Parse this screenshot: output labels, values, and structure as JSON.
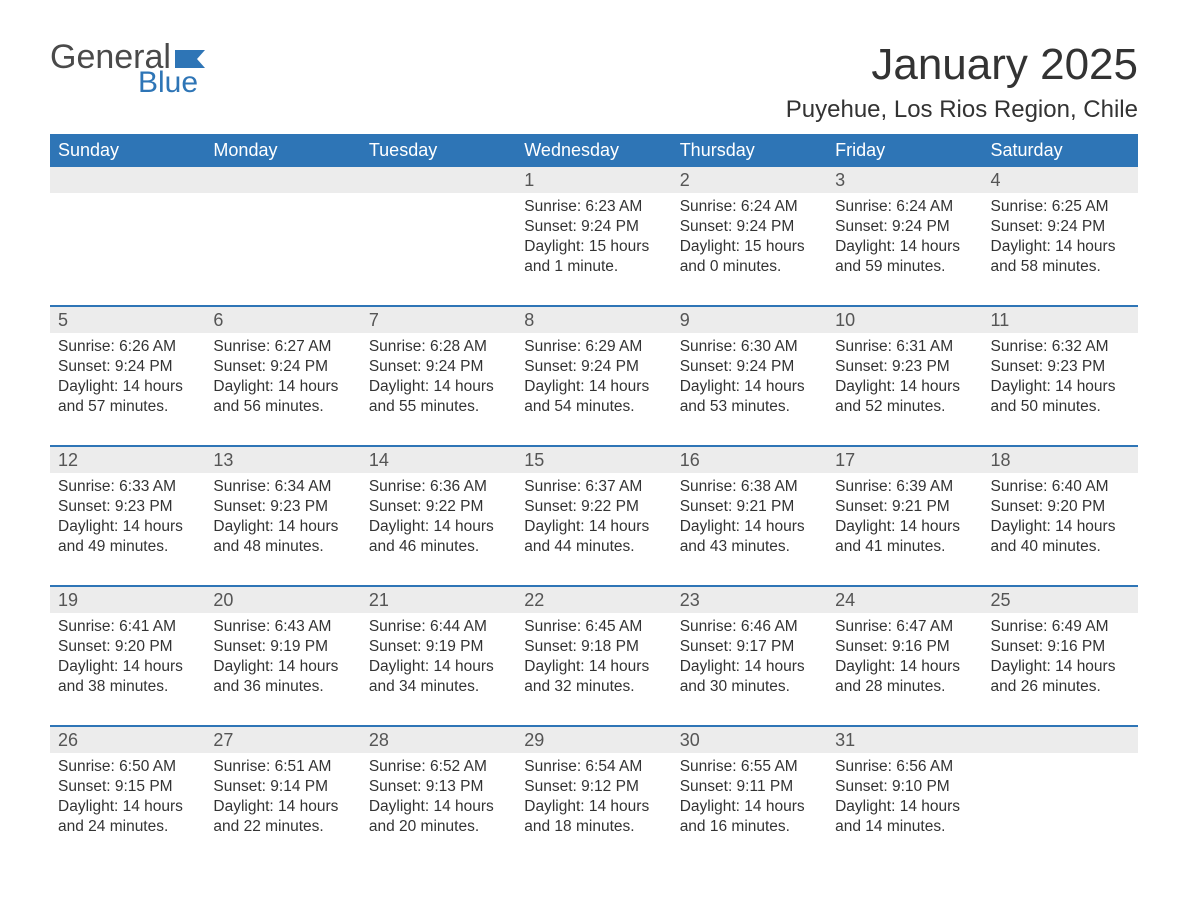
{
  "logo": {
    "general": "General",
    "blue": "Blue"
  },
  "title": "January 2025",
  "location": "Puyehue, Los Rios Region, Chile",
  "colors": {
    "header_bg": "#2e75b6",
    "header_text": "#ffffff",
    "daynum_bg": "#ececec",
    "body_text": "#333333"
  },
  "day_headers": [
    "Sunday",
    "Monday",
    "Tuesday",
    "Wednesday",
    "Thursday",
    "Friday",
    "Saturday"
  ],
  "weeks": [
    [
      null,
      null,
      null,
      {
        "n": "1",
        "sunrise": "Sunrise: 6:23 AM",
        "sunset": "Sunset: 9:24 PM",
        "day1": "Daylight: 15 hours",
        "day2": "and 1 minute."
      },
      {
        "n": "2",
        "sunrise": "Sunrise: 6:24 AM",
        "sunset": "Sunset: 9:24 PM",
        "day1": "Daylight: 15 hours",
        "day2": "and 0 minutes."
      },
      {
        "n": "3",
        "sunrise": "Sunrise: 6:24 AM",
        "sunset": "Sunset: 9:24 PM",
        "day1": "Daylight: 14 hours",
        "day2": "and 59 minutes."
      },
      {
        "n": "4",
        "sunrise": "Sunrise: 6:25 AM",
        "sunset": "Sunset: 9:24 PM",
        "day1": "Daylight: 14 hours",
        "day2": "and 58 minutes."
      }
    ],
    [
      {
        "n": "5",
        "sunrise": "Sunrise: 6:26 AM",
        "sunset": "Sunset: 9:24 PM",
        "day1": "Daylight: 14 hours",
        "day2": "and 57 minutes."
      },
      {
        "n": "6",
        "sunrise": "Sunrise: 6:27 AM",
        "sunset": "Sunset: 9:24 PM",
        "day1": "Daylight: 14 hours",
        "day2": "and 56 minutes."
      },
      {
        "n": "7",
        "sunrise": "Sunrise: 6:28 AM",
        "sunset": "Sunset: 9:24 PM",
        "day1": "Daylight: 14 hours",
        "day2": "and 55 minutes."
      },
      {
        "n": "8",
        "sunrise": "Sunrise: 6:29 AM",
        "sunset": "Sunset: 9:24 PM",
        "day1": "Daylight: 14 hours",
        "day2": "and 54 minutes."
      },
      {
        "n": "9",
        "sunrise": "Sunrise: 6:30 AM",
        "sunset": "Sunset: 9:24 PM",
        "day1": "Daylight: 14 hours",
        "day2": "and 53 minutes."
      },
      {
        "n": "10",
        "sunrise": "Sunrise: 6:31 AM",
        "sunset": "Sunset: 9:23 PM",
        "day1": "Daylight: 14 hours",
        "day2": "and 52 minutes."
      },
      {
        "n": "11",
        "sunrise": "Sunrise: 6:32 AM",
        "sunset": "Sunset: 9:23 PM",
        "day1": "Daylight: 14 hours",
        "day2": "and 50 minutes."
      }
    ],
    [
      {
        "n": "12",
        "sunrise": "Sunrise: 6:33 AM",
        "sunset": "Sunset: 9:23 PM",
        "day1": "Daylight: 14 hours",
        "day2": "and 49 minutes."
      },
      {
        "n": "13",
        "sunrise": "Sunrise: 6:34 AM",
        "sunset": "Sunset: 9:23 PM",
        "day1": "Daylight: 14 hours",
        "day2": "and 48 minutes."
      },
      {
        "n": "14",
        "sunrise": "Sunrise: 6:36 AM",
        "sunset": "Sunset: 9:22 PM",
        "day1": "Daylight: 14 hours",
        "day2": "and 46 minutes."
      },
      {
        "n": "15",
        "sunrise": "Sunrise: 6:37 AM",
        "sunset": "Sunset: 9:22 PM",
        "day1": "Daylight: 14 hours",
        "day2": "and 44 minutes."
      },
      {
        "n": "16",
        "sunrise": "Sunrise: 6:38 AM",
        "sunset": "Sunset: 9:21 PM",
        "day1": "Daylight: 14 hours",
        "day2": "and 43 minutes."
      },
      {
        "n": "17",
        "sunrise": "Sunrise: 6:39 AM",
        "sunset": "Sunset: 9:21 PM",
        "day1": "Daylight: 14 hours",
        "day2": "and 41 minutes."
      },
      {
        "n": "18",
        "sunrise": "Sunrise: 6:40 AM",
        "sunset": "Sunset: 9:20 PM",
        "day1": "Daylight: 14 hours",
        "day2": "and 40 minutes."
      }
    ],
    [
      {
        "n": "19",
        "sunrise": "Sunrise: 6:41 AM",
        "sunset": "Sunset: 9:20 PM",
        "day1": "Daylight: 14 hours",
        "day2": "and 38 minutes."
      },
      {
        "n": "20",
        "sunrise": "Sunrise: 6:43 AM",
        "sunset": "Sunset: 9:19 PM",
        "day1": "Daylight: 14 hours",
        "day2": "and 36 minutes."
      },
      {
        "n": "21",
        "sunrise": "Sunrise: 6:44 AM",
        "sunset": "Sunset: 9:19 PM",
        "day1": "Daylight: 14 hours",
        "day2": "and 34 minutes."
      },
      {
        "n": "22",
        "sunrise": "Sunrise: 6:45 AM",
        "sunset": "Sunset: 9:18 PM",
        "day1": "Daylight: 14 hours",
        "day2": "and 32 minutes."
      },
      {
        "n": "23",
        "sunrise": "Sunrise: 6:46 AM",
        "sunset": "Sunset: 9:17 PM",
        "day1": "Daylight: 14 hours",
        "day2": "and 30 minutes."
      },
      {
        "n": "24",
        "sunrise": "Sunrise: 6:47 AM",
        "sunset": "Sunset: 9:16 PM",
        "day1": "Daylight: 14 hours",
        "day2": "and 28 minutes."
      },
      {
        "n": "25",
        "sunrise": "Sunrise: 6:49 AM",
        "sunset": "Sunset: 9:16 PM",
        "day1": "Daylight: 14 hours",
        "day2": "and 26 minutes."
      }
    ],
    [
      {
        "n": "26",
        "sunrise": "Sunrise: 6:50 AM",
        "sunset": "Sunset: 9:15 PM",
        "day1": "Daylight: 14 hours",
        "day2": "and 24 minutes."
      },
      {
        "n": "27",
        "sunrise": "Sunrise: 6:51 AM",
        "sunset": "Sunset: 9:14 PM",
        "day1": "Daylight: 14 hours",
        "day2": "and 22 minutes."
      },
      {
        "n": "28",
        "sunrise": "Sunrise: 6:52 AM",
        "sunset": "Sunset: 9:13 PM",
        "day1": "Daylight: 14 hours",
        "day2": "and 20 minutes."
      },
      {
        "n": "29",
        "sunrise": "Sunrise: 6:54 AM",
        "sunset": "Sunset: 9:12 PM",
        "day1": "Daylight: 14 hours",
        "day2": "and 18 minutes."
      },
      {
        "n": "30",
        "sunrise": "Sunrise: 6:55 AM",
        "sunset": "Sunset: 9:11 PM",
        "day1": "Daylight: 14 hours",
        "day2": "and 16 minutes."
      },
      {
        "n": "31",
        "sunrise": "Sunrise: 6:56 AM",
        "sunset": "Sunset: 9:10 PM",
        "day1": "Daylight: 14 hours",
        "day2": "and 14 minutes."
      },
      null
    ]
  ]
}
